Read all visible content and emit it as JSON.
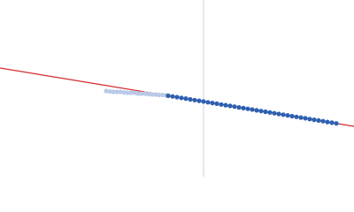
{
  "chart_data": {
    "type": "scatter",
    "xlim": [
      0,
      400
    ],
    "ylim": [
      0,
      200
    ],
    "vline": {
      "x": 230,
      "color": "#c9d2e4"
    },
    "series": [
      {
        "kind": "scatter",
        "color": "#b9c9e7",
        "x": [
          120,
          124,
          128,
          132,
          136,
          140,
          144,
          148,
          152,
          156,
          160,
          164,
          168,
          172,
          176,
          180,
          184,
          188
        ],
        "values": [
          97,
          96.5,
          96,
          96,
          96,
          95.5,
          95,
          95,
          95,
          94,
          94,
          94,
          93.5,
          93,
          93,
          92.5,
          92.5,
          92
        ]
      },
      {
        "kind": "scatter",
        "color": "#2f5fb0",
        "x": [
          190,
          195,
          200,
          205,
          210,
          215,
          220,
          225,
          230,
          235,
          240,
          245,
          250,
          255,
          260,
          265,
          270,
          275,
          280,
          285,
          290,
          295,
          300,
          305,
          310,
          315,
          320,
          325,
          330,
          335,
          340,
          345,
          350,
          355,
          360,
          365,
          370,
          375,
          380
        ],
        "values": [
          91.6,
          90.8,
          90,
          89.2,
          88.4,
          87.5,
          86.7,
          85.9,
          85.1,
          84.2,
          83.4,
          82.6,
          81.7,
          80.9,
          80.1,
          79.3,
          78.4,
          77.6,
          76.8,
          76,
          75.1,
          74.3,
          73.5,
          72.7,
          71.8,
          71,
          70.2,
          69.4,
          68.5,
          67.7,
          66.9,
          66.1,
          65.2,
          64.4,
          63.6,
          62.8,
          61.9,
          61.1,
          60.3
        ]
      },
      {
        "kind": "line",
        "color": "#d42a2a",
        "x": [
          0,
          400
        ],
        "values": [
          123,
          57
        ]
      }
    ]
  }
}
